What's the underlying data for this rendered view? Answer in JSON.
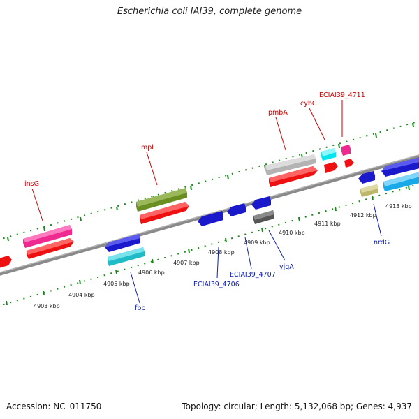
{
  "title": "Escherichia coli IAI39, complete genome",
  "footer": {
    "accession": "Accession: NC_011750",
    "summary": "Topology: circular; Length: 5,132,068 bp; Genes: 4,937"
  },
  "colors": {
    "backbone": "#8a8a8a",
    "tick_major": "#1a8a1a",
    "tick_minor": "#1a8a1a",
    "forward_label": "#cc0000",
    "reverse_label": "#1020b0"
  },
  "scale_labels": [
    "4903 kbp",
    "4904 kbp",
    "4905 kbp",
    "4906 kbp",
    "4907 kbp",
    "4908 kbp",
    "4909 kbp",
    "4910 kbp",
    "4911 kbp",
    "4912 kbp",
    "4913 kbp"
  ],
  "upper_labels": [
    {
      "text": "insG",
      "color": "#cc0000"
    },
    {
      "text": "mpl",
      "color": "#cc0000"
    },
    {
      "text": "pmbA",
      "color": "#cc0000"
    },
    {
      "text": "cybC",
      "color": "#cc0000"
    },
    {
      "text": "ECIAI39_4711",
      "color": "#cc0000"
    }
  ],
  "lower_labels": [
    {
      "text": "fbp",
      "color": "#1020b0"
    },
    {
      "text": "ECIAI39_4706",
      "color": "#1020b0"
    },
    {
      "text": "ECIAI39_4707",
      "color": "#1020b0"
    },
    {
      "text": "yjgA",
      "color": "#1020b0"
    },
    {
      "text": "nrdG",
      "color": "#1020b0"
    }
  ]
}
